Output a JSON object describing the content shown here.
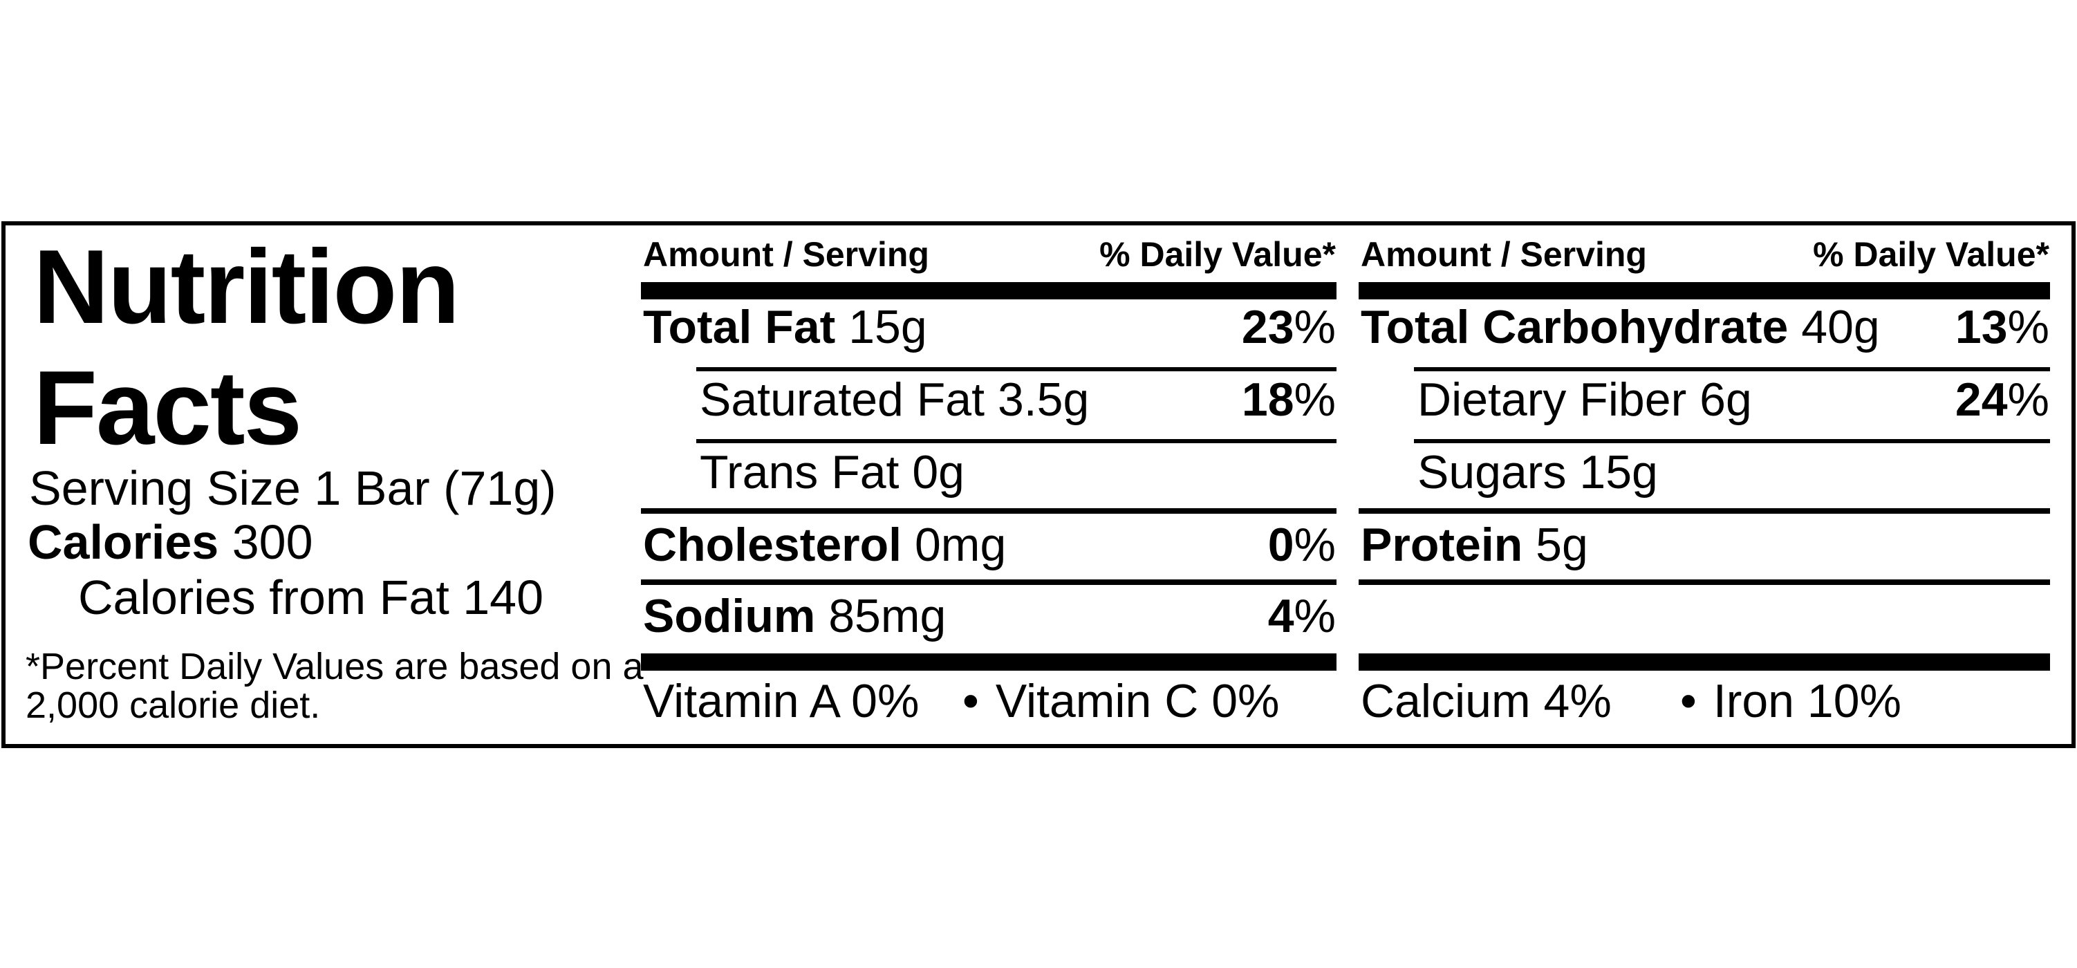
{
  "label": {
    "title_line1": "Nutrition",
    "title_line2": "Facts",
    "serving_size": "Serving Size 1 Bar (71g)",
    "calories_label": "Calories",
    "calories_value": "300",
    "calories_from_fat": "Calories from Fat 140",
    "footnote_line1": "*Percent Daily Values are based on a",
    "footnote_line2": "2,000 calorie diet.",
    "percent_sign": "%",
    "bullet": "•",
    "colors": {
      "ink": "#000000",
      "background": "#ffffff"
    },
    "columns": [
      {
        "header_left": "Amount / Serving",
        "header_right": "% Daily Value*",
        "rows": [
          {
            "name": "Total Fat",
            "amount": "15g",
            "dv": "23"
          },
          {
            "name": "Saturated Fat",
            "amount": "3.5g",
            "dv": "18"
          },
          {
            "name": "Trans Fat",
            "amount": "0g"
          },
          {
            "name": "Cholesterol",
            "amount": "0mg",
            "dv": "0"
          },
          {
            "name": "Sodium",
            "amount": "85mg",
            "dv": "4"
          }
        ],
        "footer_left": "Vitamin A 0%",
        "footer_right": "Vitamin C 0%"
      },
      {
        "header_left": "Amount / Serving",
        "header_right": "% Daily Value*",
        "rows": [
          {
            "name": "Total Carbohydrate",
            "amount": "40g",
            "dv": "13"
          },
          {
            "name": "Dietary Fiber",
            "amount": "6g",
            "dv": "24"
          },
          {
            "name": "Sugars",
            "amount": "15g"
          },
          {
            "name": "Protein",
            "amount": "5g"
          }
        ],
        "footer_left": "Calcium 4%",
        "footer_right": "Iron 10%"
      }
    ]
  }
}
